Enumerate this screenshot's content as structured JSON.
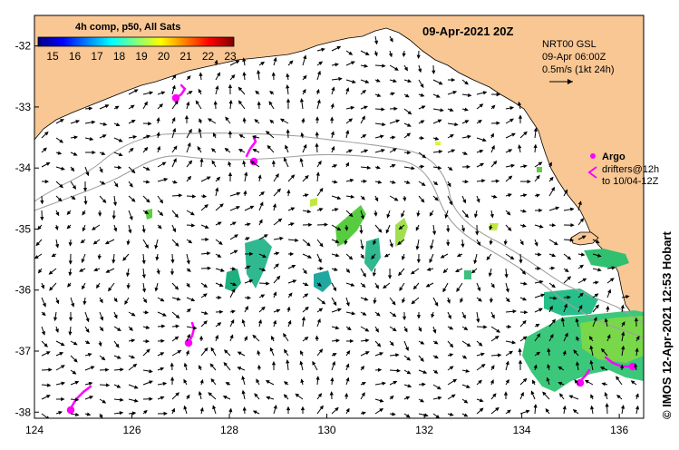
{
  "title": "09-Apr-2021 20Z",
  "colorbar": {
    "title": "4h comp, p50, All Sats",
    "ticks": [
      "15",
      "16",
      "17",
      "18",
      "19",
      "20",
      "21",
      "22",
      "23"
    ],
    "min": 15,
    "max": 23,
    "colors": [
      "#00007f",
      "#0000ff",
      "#0080ff",
      "#00ffff",
      "#80ff80",
      "#ffff00",
      "#ff8000",
      "#ff0000",
      "#7f0000"
    ]
  },
  "legend": {
    "line1": "NRT00 GSL",
    "line2": "09-Apr 06:00Z",
    "line3": "0.5m/s (1kt 24h)"
  },
  "argo": {
    "argo_label": "Argo",
    "drifters_line1": "drifters@12h",
    "drifters_line2": "to 10/04-12Z"
  },
  "footer": "© IMOS 12-Apr-2021 12:53 Hobart",
  "axes": {
    "x_ticks": [
      "124",
      "126",
      "128",
      "130",
      "132",
      "134",
      "136"
    ],
    "y_ticks": [
      "-32",
      "-33",
      "-34",
      "-35",
      "-36",
      "-37",
      "-38"
    ],
    "lon_range": [
      124,
      136.5
    ],
    "lat_range": [
      -38.1,
      -31.5
    ]
  },
  "colors": {
    "land": "#f9c794",
    "ocean": "#ffffff",
    "argo": "#ff00ff",
    "contour": "#a0a0a0"
  }
}
